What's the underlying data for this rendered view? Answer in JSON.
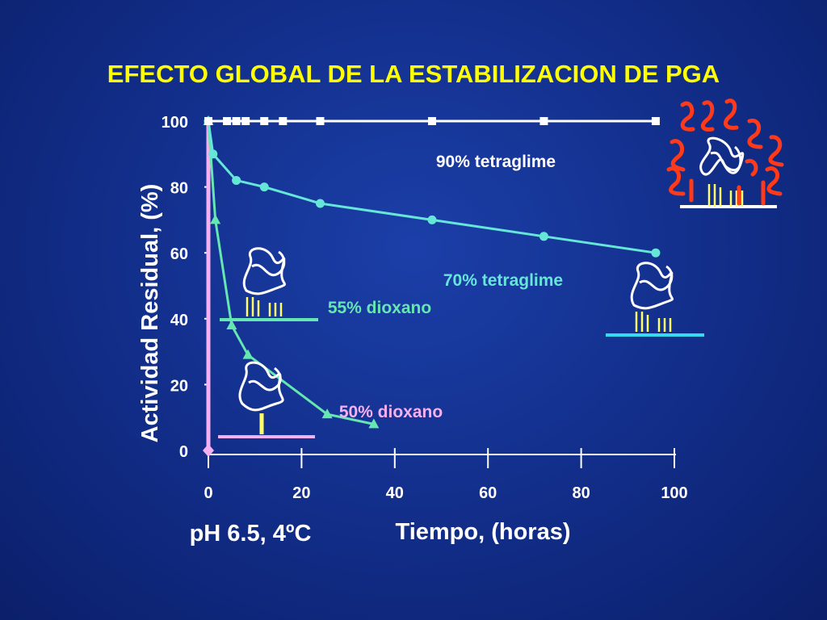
{
  "slide": {
    "title": "EFECTO GLOBAL DE LA ESTABILIZACION DE PGA",
    "condition": "pH 6.5, 4ºC"
  },
  "colors": {
    "background": "#13308e",
    "title": "#ffff00",
    "axis_text": "#ffffff",
    "tetraglime90": "#ffffff",
    "tetraglime70": "#66e6d8",
    "dioxano55": "#66e6b0",
    "dioxano50": "#f4b0f0",
    "protein_line": "#ffffff",
    "enzyme_bars": "#ffff66",
    "polymer": "#ff3a1a"
  },
  "icons": [
    "enzyme-crosslinked-polymer-icon",
    "enzyme-protein-icon"
  ],
  "chart_data": {
    "type": "line",
    "title": "EFECTO GLOBAL DE LA ESTABILIZACION DE PGA",
    "xlabel": "Tiempo, (horas)",
    "ylabel": "Actividad Residual, (%)",
    "xlim": [
      0,
      100
    ],
    "ylim": [
      0,
      100
    ],
    "xticks": [
      0,
      20,
      40,
      60,
      80,
      100
    ],
    "yticks": [
      0,
      20,
      40,
      60,
      80,
      100
    ],
    "grid": false,
    "series": [
      {
        "name": "90% tetraglime",
        "marker": "square",
        "x": [
          0,
          4,
          6,
          8,
          12,
          16,
          24,
          48,
          72,
          96
        ],
        "y": [
          100,
          100,
          100,
          100,
          100,
          100,
          100,
          100,
          100,
          100
        ]
      },
      {
        "name": "70% tetraglime",
        "marker": "circle",
        "x": [
          0,
          1,
          6,
          12,
          24,
          48,
          72,
          96
        ],
        "y": [
          100,
          90,
          82,
          80,
          75,
          70,
          65,
          60
        ]
      },
      {
        "name": "55% dioxano",
        "marker": "triangle",
        "x": [
          0,
          1.5,
          5,
          8.5,
          25.5,
          35.5
        ],
        "y": [
          100,
          70,
          38,
          29,
          11,
          8
        ]
      },
      {
        "name": "50% dioxano",
        "marker": "diamond",
        "x": [
          0,
          0,
          0
        ],
        "y": [
          100,
          50,
          0
        ]
      }
    ]
  }
}
